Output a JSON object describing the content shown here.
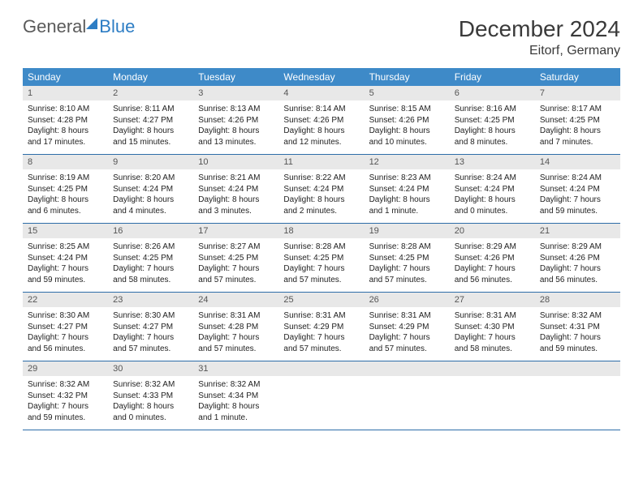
{
  "logo": {
    "text_gray": "General",
    "text_blue": "Blue"
  },
  "title": "December 2024",
  "location": "Eitorf, Germany",
  "colors": {
    "header_bg": "#3e8ac8",
    "header_text": "#ffffff",
    "daynum_bg": "#e8e8e8",
    "week_border": "#2d6da8",
    "logo_blue": "#2d7dc4",
    "logo_gray": "#5a5a5a"
  },
  "weekdays": [
    "Sunday",
    "Monday",
    "Tuesday",
    "Wednesday",
    "Thursday",
    "Friday",
    "Saturday"
  ],
  "weeks": [
    [
      {
        "n": "1",
        "sr": "8:10 AM",
        "ss": "4:28 PM",
        "dl": "8 hours and 17 minutes."
      },
      {
        "n": "2",
        "sr": "8:11 AM",
        "ss": "4:27 PM",
        "dl": "8 hours and 15 minutes."
      },
      {
        "n": "3",
        "sr": "8:13 AM",
        "ss": "4:26 PM",
        "dl": "8 hours and 13 minutes."
      },
      {
        "n": "4",
        "sr": "8:14 AM",
        "ss": "4:26 PM",
        "dl": "8 hours and 12 minutes."
      },
      {
        "n": "5",
        "sr": "8:15 AM",
        "ss": "4:26 PM",
        "dl": "8 hours and 10 minutes."
      },
      {
        "n": "6",
        "sr": "8:16 AM",
        "ss": "4:25 PM",
        "dl": "8 hours and 8 minutes."
      },
      {
        "n": "7",
        "sr": "8:17 AM",
        "ss": "4:25 PM",
        "dl": "8 hours and 7 minutes."
      }
    ],
    [
      {
        "n": "8",
        "sr": "8:19 AM",
        "ss": "4:25 PM",
        "dl": "8 hours and 6 minutes."
      },
      {
        "n": "9",
        "sr": "8:20 AM",
        "ss": "4:24 PM",
        "dl": "8 hours and 4 minutes."
      },
      {
        "n": "10",
        "sr": "8:21 AM",
        "ss": "4:24 PM",
        "dl": "8 hours and 3 minutes."
      },
      {
        "n": "11",
        "sr": "8:22 AM",
        "ss": "4:24 PM",
        "dl": "8 hours and 2 minutes."
      },
      {
        "n": "12",
        "sr": "8:23 AM",
        "ss": "4:24 PM",
        "dl": "8 hours and 1 minute."
      },
      {
        "n": "13",
        "sr": "8:24 AM",
        "ss": "4:24 PM",
        "dl": "8 hours and 0 minutes."
      },
      {
        "n": "14",
        "sr": "8:24 AM",
        "ss": "4:24 PM",
        "dl": "7 hours and 59 minutes."
      }
    ],
    [
      {
        "n": "15",
        "sr": "8:25 AM",
        "ss": "4:24 PM",
        "dl": "7 hours and 59 minutes."
      },
      {
        "n": "16",
        "sr": "8:26 AM",
        "ss": "4:25 PM",
        "dl": "7 hours and 58 minutes."
      },
      {
        "n": "17",
        "sr": "8:27 AM",
        "ss": "4:25 PM",
        "dl": "7 hours and 57 minutes."
      },
      {
        "n": "18",
        "sr": "8:28 AM",
        "ss": "4:25 PM",
        "dl": "7 hours and 57 minutes."
      },
      {
        "n": "19",
        "sr": "8:28 AM",
        "ss": "4:25 PM",
        "dl": "7 hours and 57 minutes."
      },
      {
        "n": "20",
        "sr": "8:29 AM",
        "ss": "4:26 PM",
        "dl": "7 hours and 56 minutes."
      },
      {
        "n": "21",
        "sr": "8:29 AM",
        "ss": "4:26 PM",
        "dl": "7 hours and 56 minutes."
      }
    ],
    [
      {
        "n": "22",
        "sr": "8:30 AM",
        "ss": "4:27 PM",
        "dl": "7 hours and 56 minutes."
      },
      {
        "n": "23",
        "sr": "8:30 AM",
        "ss": "4:27 PM",
        "dl": "7 hours and 57 minutes."
      },
      {
        "n": "24",
        "sr": "8:31 AM",
        "ss": "4:28 PM",
        "dl": "7 hours and 57 minutes."
      },
      {
        "n": "25",
        "sr": "8:31 AM",
        "ss": "4:29 PM",
        "dl": "7 hours and 57 minutes."
      },
      {
        "n": "26",
        "sr": "8:31 AM",
        "ss": "4:29 PM",
        "dl": "7 hours and 57 minutes."
      },
      {
        "n": "27",
        "sr": "8:31 AM",
        "ss": "4:30 PM",
        "dl": "7 hours and 58 minutes."
      },
      {
        "n": "28",
        "sr": "8:32 AM",
        "ss": "4:31 PM",
        "dl": "7 hours and 59 minutes."
      }
    ],
    [
      {
        "n": "29",
        "sr": "8:32 AM",
        "ss": "4:32 PM",
        "dl": "7 hours and 59 minutes."
      },
      {
        "n": "30",
        "sr": "8:32 AM",
        "ss": "4:33 PM",
        "dl": "8 hours and 0 minutes."
      },
      {
        "n": "31",
        "sr": "8:32 AM",
        "ss": "4:34 PM",
        "dl": "8 hours and 1 minute."
      },
      {
        "empty": true
      },
      {
        "empty": true
      },
      {
        "empty": true
      },
      {
        "empty": true
      }
    ]
  ],
  "labels": {
    "sunrise": "Sunrise: ",
    "sunset": "Sunset: ",
    "daylight": "Daylight: "
  }
}
